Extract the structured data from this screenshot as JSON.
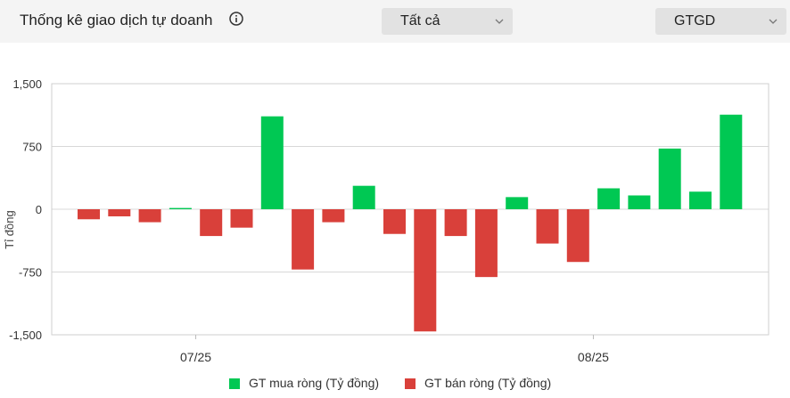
{
  "header": {
    "title": "Thống kê giao dịch tự doanh",
    "info_icon": "info-circle-icon",
    "filter_select": "Tất cả",
    "metric_select": "GTGD"
  },
  "colors": {
    "buy": "#00c853",
    "sell": "#d9403a"
  },
  "chart_data": {
    "type": "bar",
    "ylabel": "Tỉ đồng",
    "ylim": [
      -1500,
      1500
    ],
    "yticks": [
      1500,
      750,
      0,
      -750,
      -1500
    ],
    "ytick_labels": [
      "1,500",
      "750",
      "0",
      "-750",
      "-1,500"
    ],
    "xtick_labels": [
      {
        "label": "07/25",
        "index": 3.5
      },
      {
        "label": "08/25",
        "index": 16.5
      }
    ],
    "grid": true,
    "legend_position": "bottom",
    "series": [
      {
        "name": "GT mua ròng (Tỷ đồng)",
        "color": "#00c853"
      },
      {
        "name": "GT bán ròng (Tỷ đồng)",
        "color": "#d9403a"
      }
    ],
    "values": [
      -120,
      -85,
      -155,
      15,
      -320,
      -220,
      1110,
      -720,
      -155,
      280,
      -295,
      -1460,
      -320,
      -810,
      145,
      -410,
      -630,
      250,
      165,
      725,
      210,
      1130
    ]
  }
}
